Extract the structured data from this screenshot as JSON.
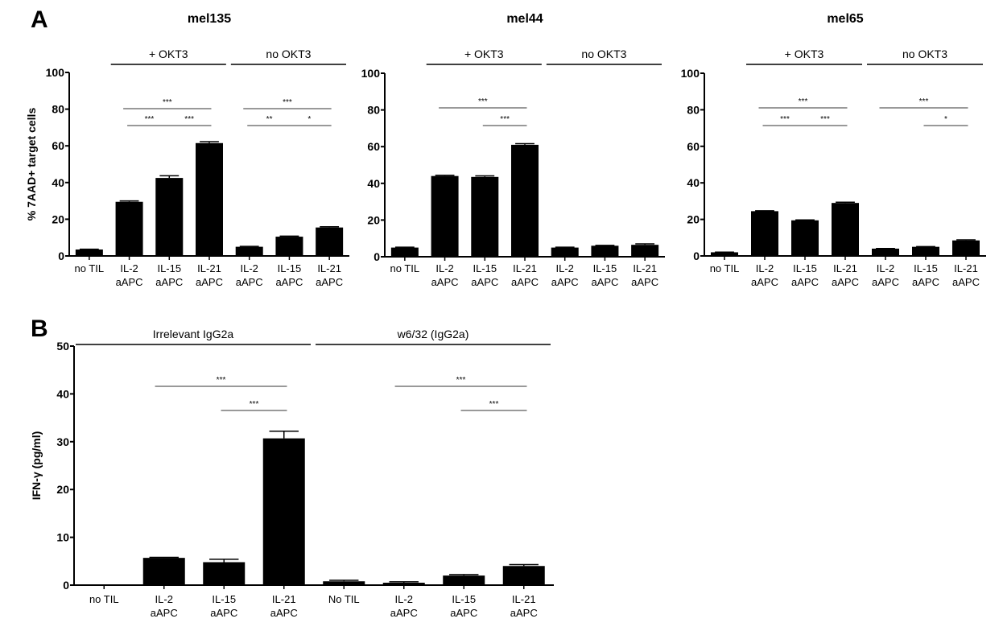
{
  "panel_labels": [
    "A",
    "B"
  ],
  "chart_data": [
    {
      "type": "bar",
      "panel": "A",
      "title": "mel135",
      "ylabel": "% 7AAD+ target cells",
      "ylim": [
        0,
        100
      ],
      "yticks": [
        0,
        20,
        40,
        60,
        80,
        100
      ],
      "categories": [
        "no TIL",
        "IL-2\naAPC",
        "IL-15\naAPC",
        "IL-21\naAPC",
        "IL-2\naAPC",
        "IL-15\naAPC",
        "IL-21\naAPC"
      ],
      "values": [
        3.5,
        29.5,
        42.5,
        61.5,
        5,
        10.5,
        15.5
      ],
      "errors": [
        0.2,
        0.5,
        1.2,
        0.8,
        0.2,
        0.3,
        0.4
      ],
      "groups": [
        {
          "label": "+ OKT3",
          "from": 1,
          "to": 3
        },
        {
          "label": "no OKT3",
          "from": 4,
          "to": 6
        }
      ],
      "significance": [
        {
          "from": 1,
          "to": 3,
          "label": "***",
          "level": 2
        },
        {
          "from": 1,
          "to": 2,
          "label": "***",
          "level": 1
        },
        {
          "from": 2,
          "to": 3,
          "label": "***",
          "level": 1
        },
        {
          "from": 4,
          "to": 6,
          "label": "***",
          "level": 2
        },
        {
          "from": 4,
          "to": 5,
          "label": "**",
          "level": 1
        },
        {
          "from": 5,
          "to": 6,
          "label": "*",
          "level": 1
        }
      ],
      "bar_color": "#000000"
    },
    {
      "type": "bar",
      "panel": "A",
      "title": "mel44",
      "ylabel": "",
      "ylim": [
        0,
        100
      ],
      "yticks": [
        0,
        20,
        40,
        60,
        80,
        100
      ],
      "categories": [
        "no TIL",
        "IL-2\naAPC",
        "IL-15\naAPC",
        "IL-21\naAPC",
        "IL-2\naAPC",
        "IL-15\naAPC",
        "IL-21\naAPC"
      ],
      "values": [
        5,
        44,
        43.5,
        61,
        5,
        6,
        6.5
      ],
      "errors": [
        0.2,
        0.4,
        0.6,
        0.6,
        0.2,
        0.2,
        0.5
      ],
      "groups": [
        {
          "label": "+ OKT3",
          "from": 1,
          "to": 3
        },
        {
          "label": "no OKT3",
          "from": 4,
          "to": 6
        }
      ],
      "significance": [
        {
          "from": 1,
          "to": 3,
          "label": "***",
          "level": 2
        },
        {
          "from": 2,
          "to": 3,
          "label": "***",
          "level": 1
        }
      ],
      "bar_color": "#000000"
    },
    {
      "type": "bar",
      "panel": "A",
      "title": "mel65",
      "ylabel": "",
      "ylim": [
        0,
        100
      ],
      "yticks": [
        0,
        20,
        40,
        60,
        80,
        100
      ],
      "categories": [
        "no TIL",
        "IL-2\naAPC",
        "IL-15\naAPC",
        "IL-21\naAPC",
        "IL-2\naAPC",
        "IL-15\naAPC",
        "IL-21\naAPC"
      ],
      "values": [
        2,
        24.5,
        19.5,
        29,
        4,
        5,
        8.5
      ],
      "errors": [
        0.1,
        0.2,
        0.2,
        0.4,
        0.1,
        0.1,
        0.3
      ],
      "groups": [
        {
          "label": "+ OKT3",
          "from": 1,
          "to": 3
        },
        {
          "label": "no OKT3",
          "from": 4,
          "to": 6
        }
      ],
      "significance": [
        {
          "from": 1,
          "to": 3,
          "label": "***",
          "level": 2
        },
        {
          "from": 1,
          "to": 2,
          "label": "***",
          "level": 1
        },
        {
          "from": 2,
          "to": 3,
          "label": "***",
          "level": 1
        },
        {
          "from": 4,
          "to": 6,
          "label": "***",
          "level": 2
        },
        {
          "from": 5,
          "to": 6,
          "label": "*",
          "level": 1
        }
      ],
      "bar_color": "#000000"
    },
    {
      "type": "bar",
      "panel": "B",
      "title": "",
      "ylabel": "IFN-γ (pg/ml)",
      "ylim": [
        0,
        50
      ],
      "yticks": [
        0,
        10,
        20,
        30,
        40,
        50
      ],
      "categories": [
        "no TIL",
        "IL-2\naAPC",
        "IL-15\naAPC",
        "IL-21\naAPC",
        "No TIL",
        "IL-2\naAPC",
        "IL-15\naAPC",
        "IL-21\naAPC"
      ],
      "values": [
        0,
        5.7,
        4.8,
        30.7,
        0.8,
        0.5,
        2,
        4
      ],
      "errors": [
        0,
        0.1,
        0.6,
        1.5,
        0.2,
        0.2,
        0.2,
        0.3
      ],
      "groups": [
        {
          "label": "Irrelevant IgG2a",
          "from": 0,
          "to": 3
        },
        {
          "label": "w6/32 (IgG2a)",
          "from": 4,
          "to": 7
        }
      ],
      "significance": [
        {
          "from": 1,
          "to": 3,
          "label": "***",
          "level": 2
        },
        {
          "from": 2,
          "to": 3,
          "label": "***",
          "level": 1
        },
        {
          "from": 5,
          "to": 7,
          "label": "***",
          "level": 2
        },
        {
          "from": 6,
          "to": 7,
          "label": "***",
          "level": 1
        }
      ],
      "bar_color": "#000000"
    }
  ]
}
